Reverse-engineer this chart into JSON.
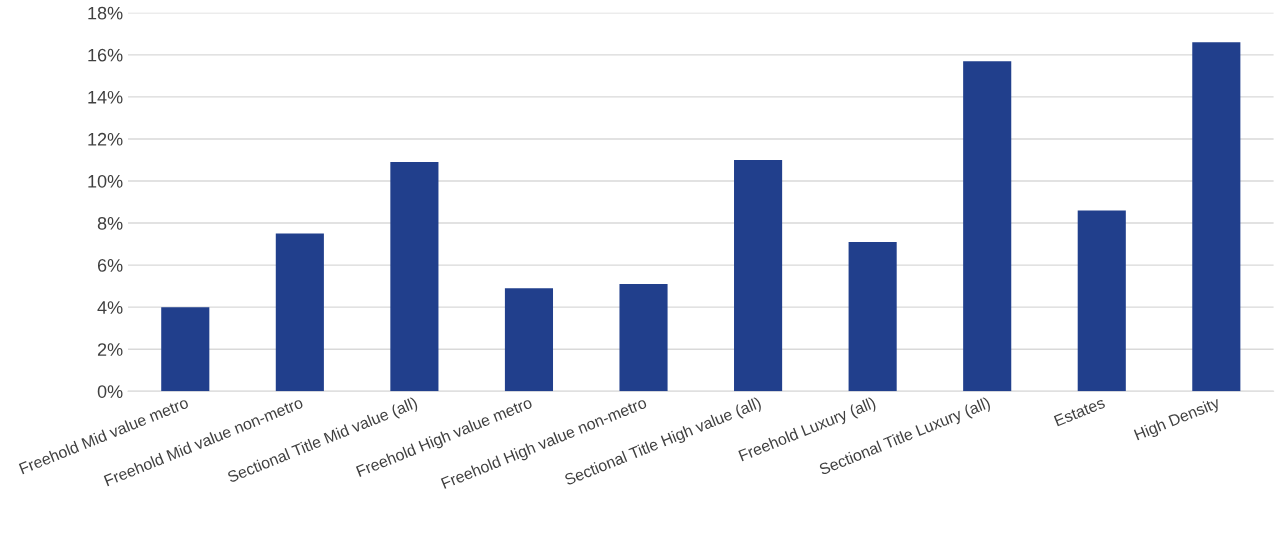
{
  "chart_data": {
    "type": "bar",
    "categories": [
      "Freehold Mid value metro",
      "Freehold Mid value non-metro",
      "Sectional Title Mid value (all)",
      "Freehold High value metro",
      "Freehold High value non-metro",
      "Sectional Title High value (all)",
      "Freehold Luxury (all)",
      "Sectional Title Luxury (all)",
      "Estates",
      "High Density"
    ],
    "values": [
      4.0,
      7.5,
      10.9,
      4.9,
      5.1,
      11.0,
      7.1,
      15.7,
      8.6,
      16.6
    ],
    "color": "#213f8c",
    "ylim": [
      0,
      18
    ],
    "yticks": [
      {
        "value": 0,
        "label": "0%"
      },
      {
        "value": 2,
        "label": "2%"
      },
      {
        "value": 4,
        "label": "4%"
      },
      {
        "value": 6,
        "label": "6%"
      },
      {
        "value": 8,
        "label": "8%"
      },
      {
        "value": 10,
        "label": "10%"
      },
      {
        "value": 12,
        "label": "12%"
      },
      {
        "value": 14,
        "label": "14%"
      },
      {
        "value": 16,
        "label": "16%"
      },
      {
        "value": 18,
        "label": "18%"
      }
    ],
    "grid": "y"
  }
}
